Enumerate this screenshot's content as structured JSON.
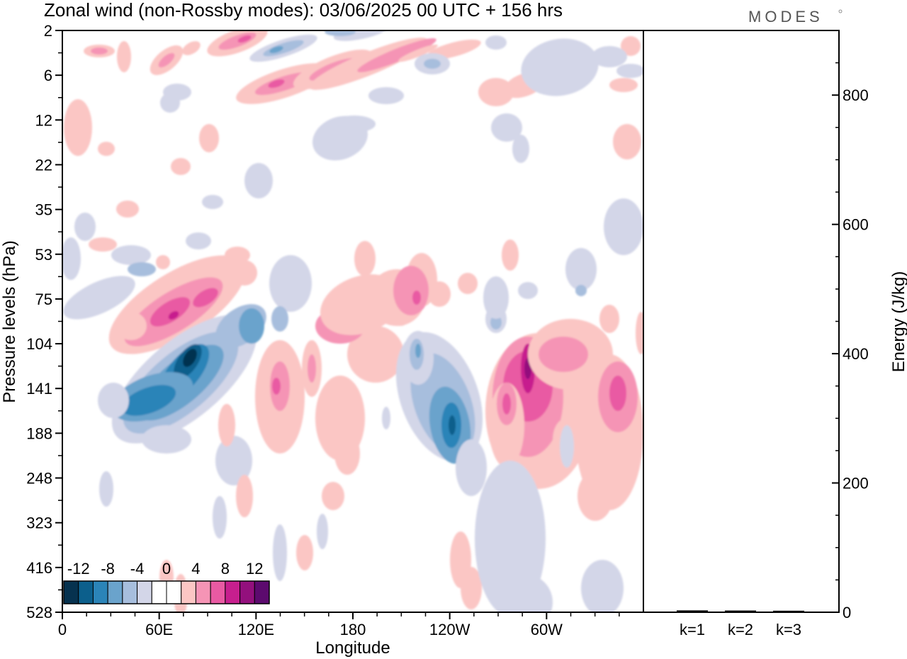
{
  "header": {
    "title": "Zonal wind (non-Rossby modes):  03/06/2025  00 UTC  + 156 hrs",
    "brand": "MODES"
  },
  "chart_data": [
    {
      "type": "heatmap",
      "title": "Zonal wind (non-Rossby modes):  03/06/2025  00 UTC  + 156 hrs",
      "xlabel": "Longitude",
      "ylabel": "Pressure levels (hPa)",
      "x_ticks": [
        "0",
        "60E",
        "120E",
        "180",
        "120W",
        "60W"
      ],
      "y_ticks": [
        "2",
        "6",
        "12",
        "22",
        "35",
        "53",
        "75",
        "104",
        "141",
        "188",
        "248",
        "323",
        "416",
        "528"
      ],
      "xlim": [
        "0",
        "360"
      ],
      "ylim": [
        2,
        528
      ],
      "colorbar": {
        "tick_labels": [
          "-12",
          "-8",
          "-4",
          "0",
          "4",
          "8",
          "12"
        ],
        "colors": [
          "#06324f",
          "#0c5f8c",
          "#2b84b8",
          "#6aa3cc",
          "#a7bedd",
          "#d3d6e8",
          "#ffffff",
          "#ffffff",
          "#fbc6c4",
          "#f594b5",
          "#e95aa3",
          "#c71f8e",
          "#93107d",
          "#5c0a6e"
        ]
      },
      "features": [
        {
          "kind": "negative",
          "lon": 78,
          "level": 120,
          "min": -14
        },
        {
          "kind": "negative",
          "lon": 64,
          "level": 140,
          "min": -10
        },
        {
          "kind": "positive",
          "lon": 80,
          "level": 88,
          "max": 8
        },
        {
          "kind": "negative",
          "lon": 240,
          "level": 180,
          "min": -12
        },
        {
          "kind": "positive",
          "lon": 293,
          "level": 140,
          "max": 10
        },
        {
          "kind": "positive",
          "lon": 345,
          "level": 140,
          "max": 8
        },
        {
          "kind": "positive",
          "lon": 215,
          "level": 75,
          "max": 6
        },
        {
          "kind": "positive",
          "lon": 150,
          "level": 5,
          "max": 8
        },
        {
          "kind": "negative",
          "lon": 130,
          "level": 3,
          "min": -6
        }
      ]
    },
    {
      "type": "bar",
      "ylabel": "Energy (J/kg)",
      "categories": [
        "k=1",
        "k=2",
        "k=3"
      ],
      "values": [
        1.2,
        1.0,
        0.7
      ],
      "ylim": [
        0,
        900
      ],
      "y_ticks": [
        "0",
        "200",
        "400",
        "600",
        "800"
      ],
      "color": "#000000"
    }
  ]
}
